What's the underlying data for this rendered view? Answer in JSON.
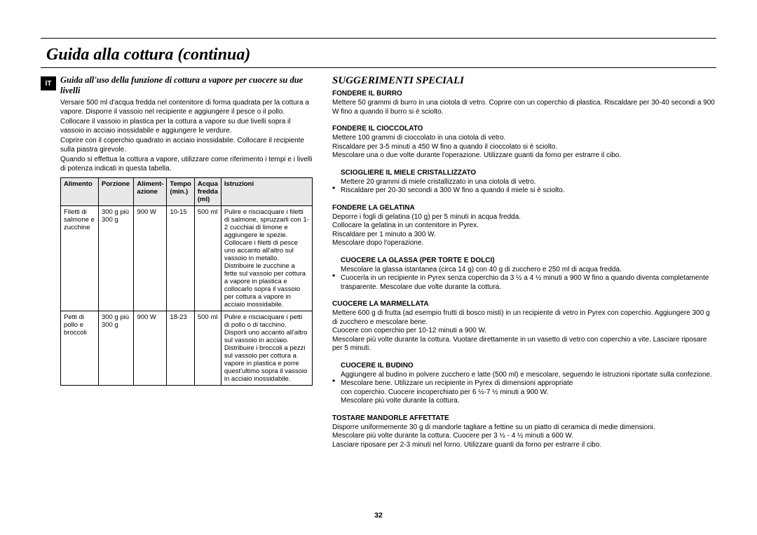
{
  "page_number": "32",
  "title": "Guida alla cottura (continua)",
  "lang_badge": "IT",
  "left": {
    "subtitle": "Guida all'uso della funzione di cottura a vapore per cuocere su due livelli",
    "paras": [
      "Versare 500 ml d'acqua fredda nel contenitore di forma quadrata per la cottura a vapore. Disporre il vassoio nel recipiente e aggiungere il pesce o il pollo.",
      "Collocare il vassoio in plastica per la cottura a vapore su due livelli sopra il vassoio in acciaio inossidabile e aggiungere le verdure.",
      "Coprire con il coperchio quadrato in acciaio inossidabile. Collocare il recipiente sulla piastra girevole.",
      "Quando si effettua la cottura a vapore, utilizzare come riferimento i tempi e i livelli di potenza indicati in questa tabella."
    ],
    "table": {
      "headers": [
        "Alimento",
        "Porzione",
        "Aliment-\nazione",
        "Tempo\n(min.)",
        "Acqua\nfredda\n(ml)",
        "Istruzioni"
      ],
      "rows": [
        {
          "alimento": "Filetti di salmone e zucchine",
          "porzione": "300 g più 300 g",
          "alimentazione": "900 W",
          "tempo": "10-15",
          "acqua": "500 ml",
          "istruzioni": "Pulire e risciacquare i filetti di salmone, spruzzarli con 1-2 cucchiai di limone e aggiungere le spezie. Collocare i filetti di pesce uno accanto all'altro sul vassoio in metallo. Distribuire le zucchine a fette sul vassoio per cottura a vapore in plastica e collocarlo sopra il vassoio per cottura a vapore in acciaio inossidabile."
        },
        {
          "alimento": "Petti di pollo e broccoli",
          "porzione": "300 g più 300 g",
          "alimentazione": "900 W",
          "tempo": "18-23",
          "acqua": "500 ml",
          "istruzioni": "Pulire e risciacquare i petti di pollo o di tacchino. Disporli uno accanto all'altro sul vassoio in acciaio. Distribuire i broccoli a pezzi sul vassoio per cottura a vapore in plastica e porre quest'ultimo sopra il vassoio in acciaio inossidabile."
        }
      ]
    }
  },
  "right": {
    "heading": "SUGGERIMENTI SPECIALI",
    "tips": [
      {
        "title": "FONDERE IL BURRO",
        "bulleted": false,
        "body": "Mettere 50 grammi di burro in una ciotola di vetro. Coprire con un coperchio di plastica. Riscaldare per 30-40 secondi a 900 W fino a quando il burro si è sciolto."
      },
      {
        "title": "FONDERE IL CIOCCOLATO",
        "bulleted": false,
        "body": "Mettere 100 grammi di cioccolato in una ciotola di vetro.\nRiscaldare per 3-5 minuti a 450 W fino a quando il cioccolato si è sciolto.\nMescolare una o due volte durante l'operazione. Utilizzare guanti da forno per estrarre il cibo."
      },
      {
        "title": "SCIOGLIERE IL MIELE CRISTALLIZZATO",
        "bulleted": true,
        "body": "Mettere 20 grammi di miele cristallizzato in una ciotola di vetro.\nRiscaldare per 20-30 secondi a 300 W fino a quando il miele si è sciolto."
      },
      {
        "title": "FONDERE LA GELATINA",
        "bulleted": false,
        "body": "Deporre i fogli di gelatina (10 g) per 5 minuti in acqua fredda.\nCollocare la gelatina in un contenitore in Pyrex.\nRiscaldare per 1 minuto a 300 W.\nMescolare dopo l'operazione."
      },
      {
        "title": "CUOCERE LA GLASSA (PER TORTE E DOLCI)",
        "bulleted": true,
        "body": "Mescolare la glassa istantanea (circa 14 g) con 40 g di zucchero e 250 ml di acqua fredda.\nCuocerla in un recipiente in Pyrex senza coperchio da 3 ½ a 4 ½ minuti a 900 W fino a quando diventa completamente trasparente. Mescolare due volte durante la cottura."
      },
      {
        "title": "CUOCERE LA MARMELLATA",
        "bulleted": false,
        "body": "Mettere 600 g di frutta (ad esempio frutti di bosco misti) in un recipiente di vetro in Pyrex con coperchio. Aggiungere 300 g di zucchero e mescolare bene.\nCuocere con coperchio per 10-12 minuti a 900 W.\nMescolare più volte durante la cottura. Vuotare direttamente in un vasetto di vetro con coperchio a vite. Lasciare riposare per 5 minuti."
      },
      {
        "title": "CUOCERE IL BUDINO",
        "bulleted": true,
        "body": "Aggiungere al budino in polvere zucchero e latte (500 ml) e mescolare, seguendo le istruzioni riportate sulla confezione. Mescolare bene. Utilizzare un recipiente in Pyrex di dimensioni appropriate\ncon coperchio. Cuocere incoperchiato per 6 ½-7 ½ minuti a 900 W.\nMescolare più volte durante la cottura."
      },
      {
        "title": "TOSTARE MANDORLE AFFETTATE",
        "bulleted": false,
        "body": "Disporre uniformemente 30 g di mandorle tagliare a fettine su un piatto di ceramica di medie dimensioni.\nMescolare più volte durante la cottura. Cuocere per 3 ½ - 4 ½ minuti a 600 W.\nLasciare riposare per 2-3 minuti nel forno. Utilizzare guanti da forno per estrarre il cibo."
      }
    ]
  }
}
